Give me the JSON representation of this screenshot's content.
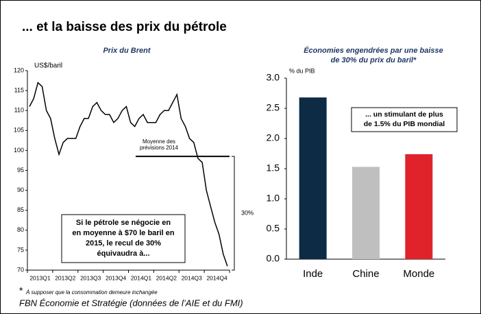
{
  "title": "... et la baisse des prix du pétrole",
  "chart_data": [
    {
      "type": "line",
      "title": "Prix du Brent",
      "y_axis_label": "US$/baril",
      "categories": [
        null,
        null,
        null,
        "2013Q1",
        null,
        null,
        null,
        null,
        null,
        "2013Q2",
        null,
        null,
        null,
        null,
        null,
        "2013Q3",
        null,
        null,
        null,
        null,
        null,
        "2013Q4",
        null,
        null,
        null,
        null,
        null,
        "2014Q1",
        null,
        null,
        null,
        null,
        null,
        "2014Q2",
        null,
        null,
        null,
        null,
        null,
        "2014Q3",
        null,
        null,
        null,
        null,
        null,
        "2014Q4",
        null,
        null
      ],
      "series": [
        {
          "name": "Brent",
          "color": "#000000",
          "values": [
            111,
            113,
            117,
            116,
            110,
            108,
            103,
            99,
            102,
            103,
            103,
            103,
            106,
            108,
            108,
            111,
            112,
            110,
            109,
            109,
            107,
            108,
            110,
            111,
            107,
            106,
            108,
            109,
            107,
            107,
            107,
            109,
            110,
            110,
            112,
            114,
            108,
            106,
            103,
            102,
            98,
            97,
            90,
            86,
            82,
            79,
            74,
            71
          ]
        }
      ],
      "ylim": [
        70,
        120
      ],
      "yticks": [
        70,
        75,
        80,
        85,
        90,
        95,
        100,
        105,
        110,
        115,
        120
      ],
      "forecast": {
        "label_lines": [
          "Moyenne des",
          "prévisions 2014"
        ],
        "value": 98.5
      },
      "bracket_label": "30%",
      "box_lines": [
        "Si le pétrole se négocie en",
        "en moyenne à $70 le baril en",
        "2015, le recul de 30%",
        "équivaudra à..."
      ]
    },
    {
      "type": "bar",
      "title_lines": [
        "Économies engendrées par une baisse",
        "de 30% du prix du baril*"
      ],
      "y_axis_label": "% du PIB",
      "categories": [
        "Inde",
        "Chine",
        "Monde"
      ],
      "values": [
        2.68,
        1.53,
        1.74
      ],
      "colors": [
        "#0d2b45",
        "#bfbfbf",
        "#e0232a"
      ],
      "ylim": [
        0,
        3
      ],
      "yticks": [
        {
          "value": 0,
          "label": "0.0"
        },
        {
          "value": 0.5,
          "label": "0.5"
        },
        {
          "value": 1,
          "label": "1.0"
        },
        {
          "value": 1.5,
          "label": "1.5"
        },
        {
          "value": 2,
          "label": "2.0"
        },
        {
          "value": 2.5,
          "label": "2.5"
        },
        {
          "value": 3,
          "label": "3.0"
        }
      ],
      "box_lines": [
        "... un stimulant de plus",
        "de 1.5% du PIB mondial"
      ]
    }
  ],
  "footnote_mark": "*",
  "footnote": "À supposer que la consommation demeure inchangée",
  "source": "FBN Économie et Stratégie (données de l’AIE et du FMI)"
}
